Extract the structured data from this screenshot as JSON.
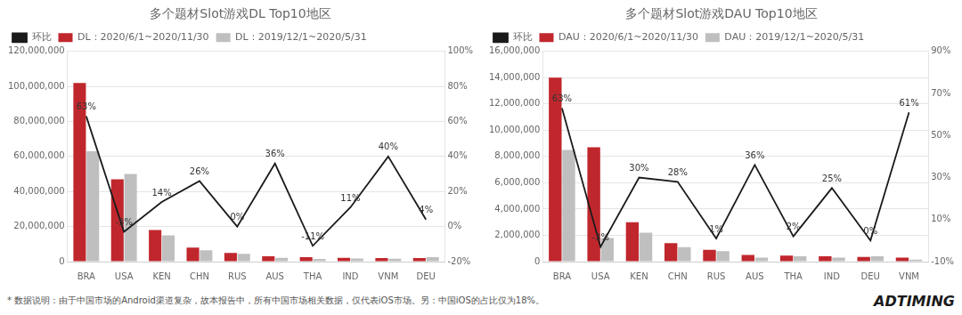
{
  "chart_data": [
    {
      "type": "bar",
      "title": "多个题材Slot游戏DL Top10地区",
      "categories": [
        "BRA",
        "USA",
        "KEN",
        "CHN",
        "RUS",
        "AUS",
        "THA",
        "IND",
        "VNM",
        "DEU"
      ],
      "series": [
        {
          "name": "DL：2020/6/1~2020/11/30",
          "color": "#c0272d",
          "type": "bar",
          "values": [
            102000000,
            47000000,
            18000000,
            8000000,
            5000000,
            3000000,
            2500000,
            2200000,
            2000000,
            2000000
          ]
        },
        {
          "name": "DL：2019/12/1~2020/5/31",
          "color": "#bfbfbf",
          "type": "bar",
          "values": [
            63000000,
            50000000,
            15000000,
            6500000,
            4500000,
            2200000,
            1500000,
            1800000,
            1600000,
            2500000
          ]
        },
        {
          "name": "环比",
          "color": "#1a1a1a",
          "type": "line",
          "axis": "y2",
          "data_labels": true,
          "values": [
            63,
            -3,
            14,
            26,
            0,
            36,
            -11,
            11,
            40,
            4
          ],
          "value_labels": [
            "63%",
            "-3%",
            "14%",
            "26%",
            "0%",
            "36%",
            "-11%",
            "11%",
            "40%",
            "4%"
          ]
        }
      ],
      "ylim": [
        0,
        120000000
      ],
      "yticks": [
        0,
        {
          "value": 20000000,
          "label": "20,000,000"
        },
        {
          "value": 40000000,
          "label": "40,000,000"
        },
        {
          "value": 60000000,
          "label": "60,000,000"
        },
        {
          "value": 80000000,
          "label": "80,000,000"
        },
        {
          "value": 100000000,
          "label": "100,000,000"
        },
        {
          "value": 120000000,
          "label": "120,000,000"
        }
      ],
      "y2lim": [
        -20,
        100
      ],
      "y2ticks": [
        {
          "value": -20,
          "label": "-20%"
        },
        {
          "value": 0,
          "label": "0%"
        },
        {
          "value": 20,
          "label": "20%"
        },
        {
          "value": 40,
          "label": "40%"
        },
        {
          "value": 60,
          "label": "60%"
        },
        {
          "value": 80,
          "label": "80%"
        },
        {
          "value": 100,
          "label": "100%"
        }
      ],
      "grid": true,
      "legend": "top",
      "annotations": [
        "* 数据说明：由于中国市场的Android渠道复杂，故本报告中，所有中国市场相关数据，仅代表iOS市场。另：中国iOS的占比仅为18%。"
      ]
    },
    {
      "type": "bar",
      "title": "多个题材Slot游戏DAU Top10地区",
      "categories": [
        "BRA",
        "USA",
        "KEN",
        "CHN",
        "RUS",
        "AUS",
        "THA",
        "IND",
        "DEU",
        "VNM"
      ],
      "series": [
        {
          "name": "DAU：2020/6/1~2020/11/30",
          "color": "#c0272d",
          "type": "bar",
          "values": [
            14000000,
            8700000,
            3000000,
            1400000,
            900000,
            500000,
            450000,
            400000,
            350000,
            300000
          ]
        },
        {
          "name": "DAU：2019/12/1~2020/5/31",
          "color": "#bfbfbf",
          "type": "bar",
          "values": [
            8500000,
            1800000,
            2200000,
            1100000,
            800000,
            300000,
            400000,
            300000,
            400000,
            150000
          ]
        },
        {
          "name": "环比",
          "color": "#1a1a1a",
          "type": "line",
          "axis": "y2",
          "data_labels": true,
          "values": [
            63,
            -3,
            30,
            28,
            1,
            36,
            2,
            25,
            0,
            61
          ],
          "value_labels": [
            "63%",
            "-3%",
            "30%",
            "28%",
            "1%",
            "36%",
            "2%",
            "25%",
            "0%",
            "61%"
          ]
        }
      ],
      "ylim": [
        0,
        16000000
      ],
      "yticks": [
        0,
        {
          "value": 2000000,
          "label": "2,000,000"
        },
        {
          "value": 4000000,
          "label": "4,000,000"
        },
        {
          "value": 6000000,
          "label": "6,000,000"
        },
        {
          "value": 8000000,
          "label": "8,000,000"
        },
        {
          "value": 10000000,
          "label": "10,000,000"
        },
        {
          "value": 12000000,
          "label": "12,000,000"
        },
        {
          "value": 14000000,
          "label": "14,000,000"
        },
        {
          "value": 16000000,
          "label": "16,000,000"
        }
      ],
      "y2lim": [
        -10,
        90
      ],
      "y2ticks": [
        {
          "value": -10,
          "label": "-10%"
        },
        {
          "value": 10,
          "label": "10%"
        },
        {
          "value": 30,
          "label": "30%"
        },
        {
          "value": 50,
          "label": "50%"
        },
        {
          "value": 70,
          "label": "70%"
        },
        {
          "value": 90,
          "label": "90%"
        }
      ],
      "grid": true,
      "legend": "top",
      "annotations": [
        "ADTIMING"
      ]
    }
  ]
}
